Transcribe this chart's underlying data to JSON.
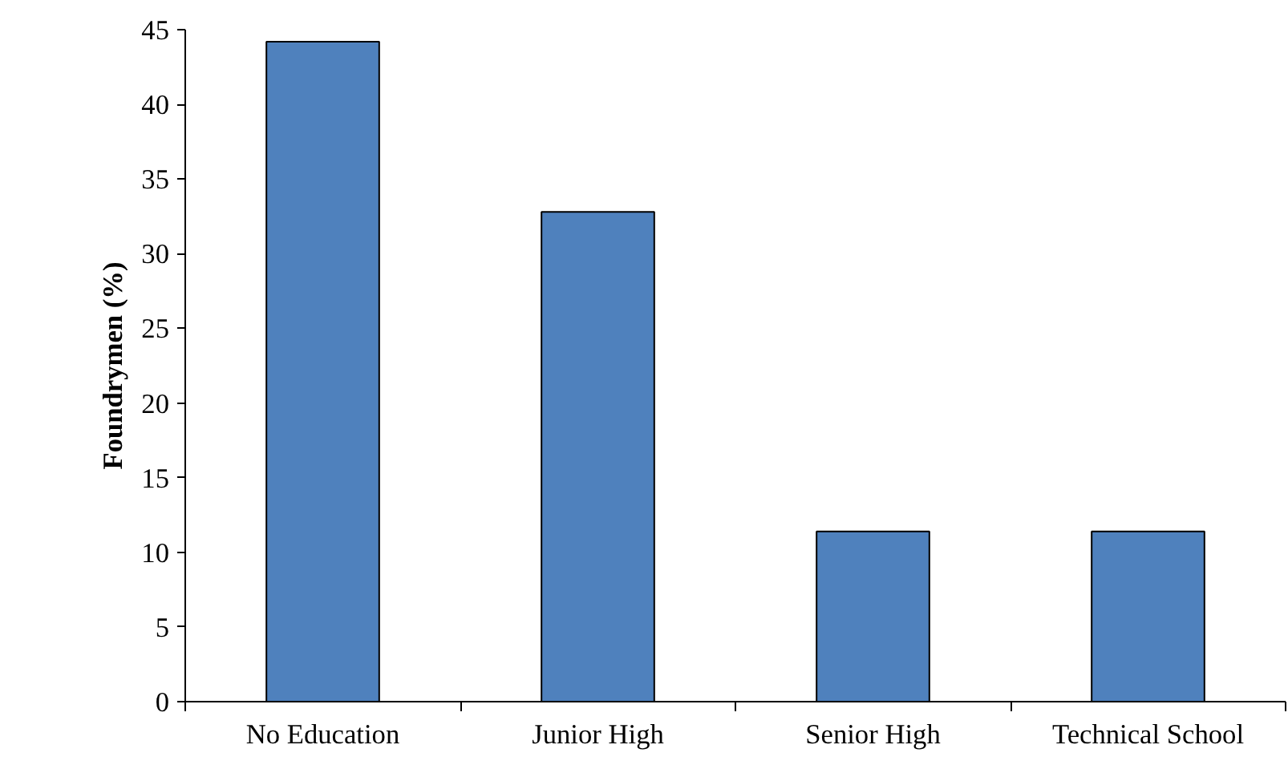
{
  "chart_data": {
    "type": "bar",
    "ylabel": "Foundrymen (%)",
    "categories": [
      "No Education",
      "Junior High",
      "Senior High",
      "Technical School"
    ],
    "values": [
      44.2,
      32.8,
      11.4,
      11.4
    ],
    "color": "#4f81bd",
    "ylim": [
      0,
      45
    ],
    "yticks": [
      0,
      5,
      10,
      15,
      20,
      25,
      30,
      35,
      40,
      45
    ],
    "grid": false
  }
}
